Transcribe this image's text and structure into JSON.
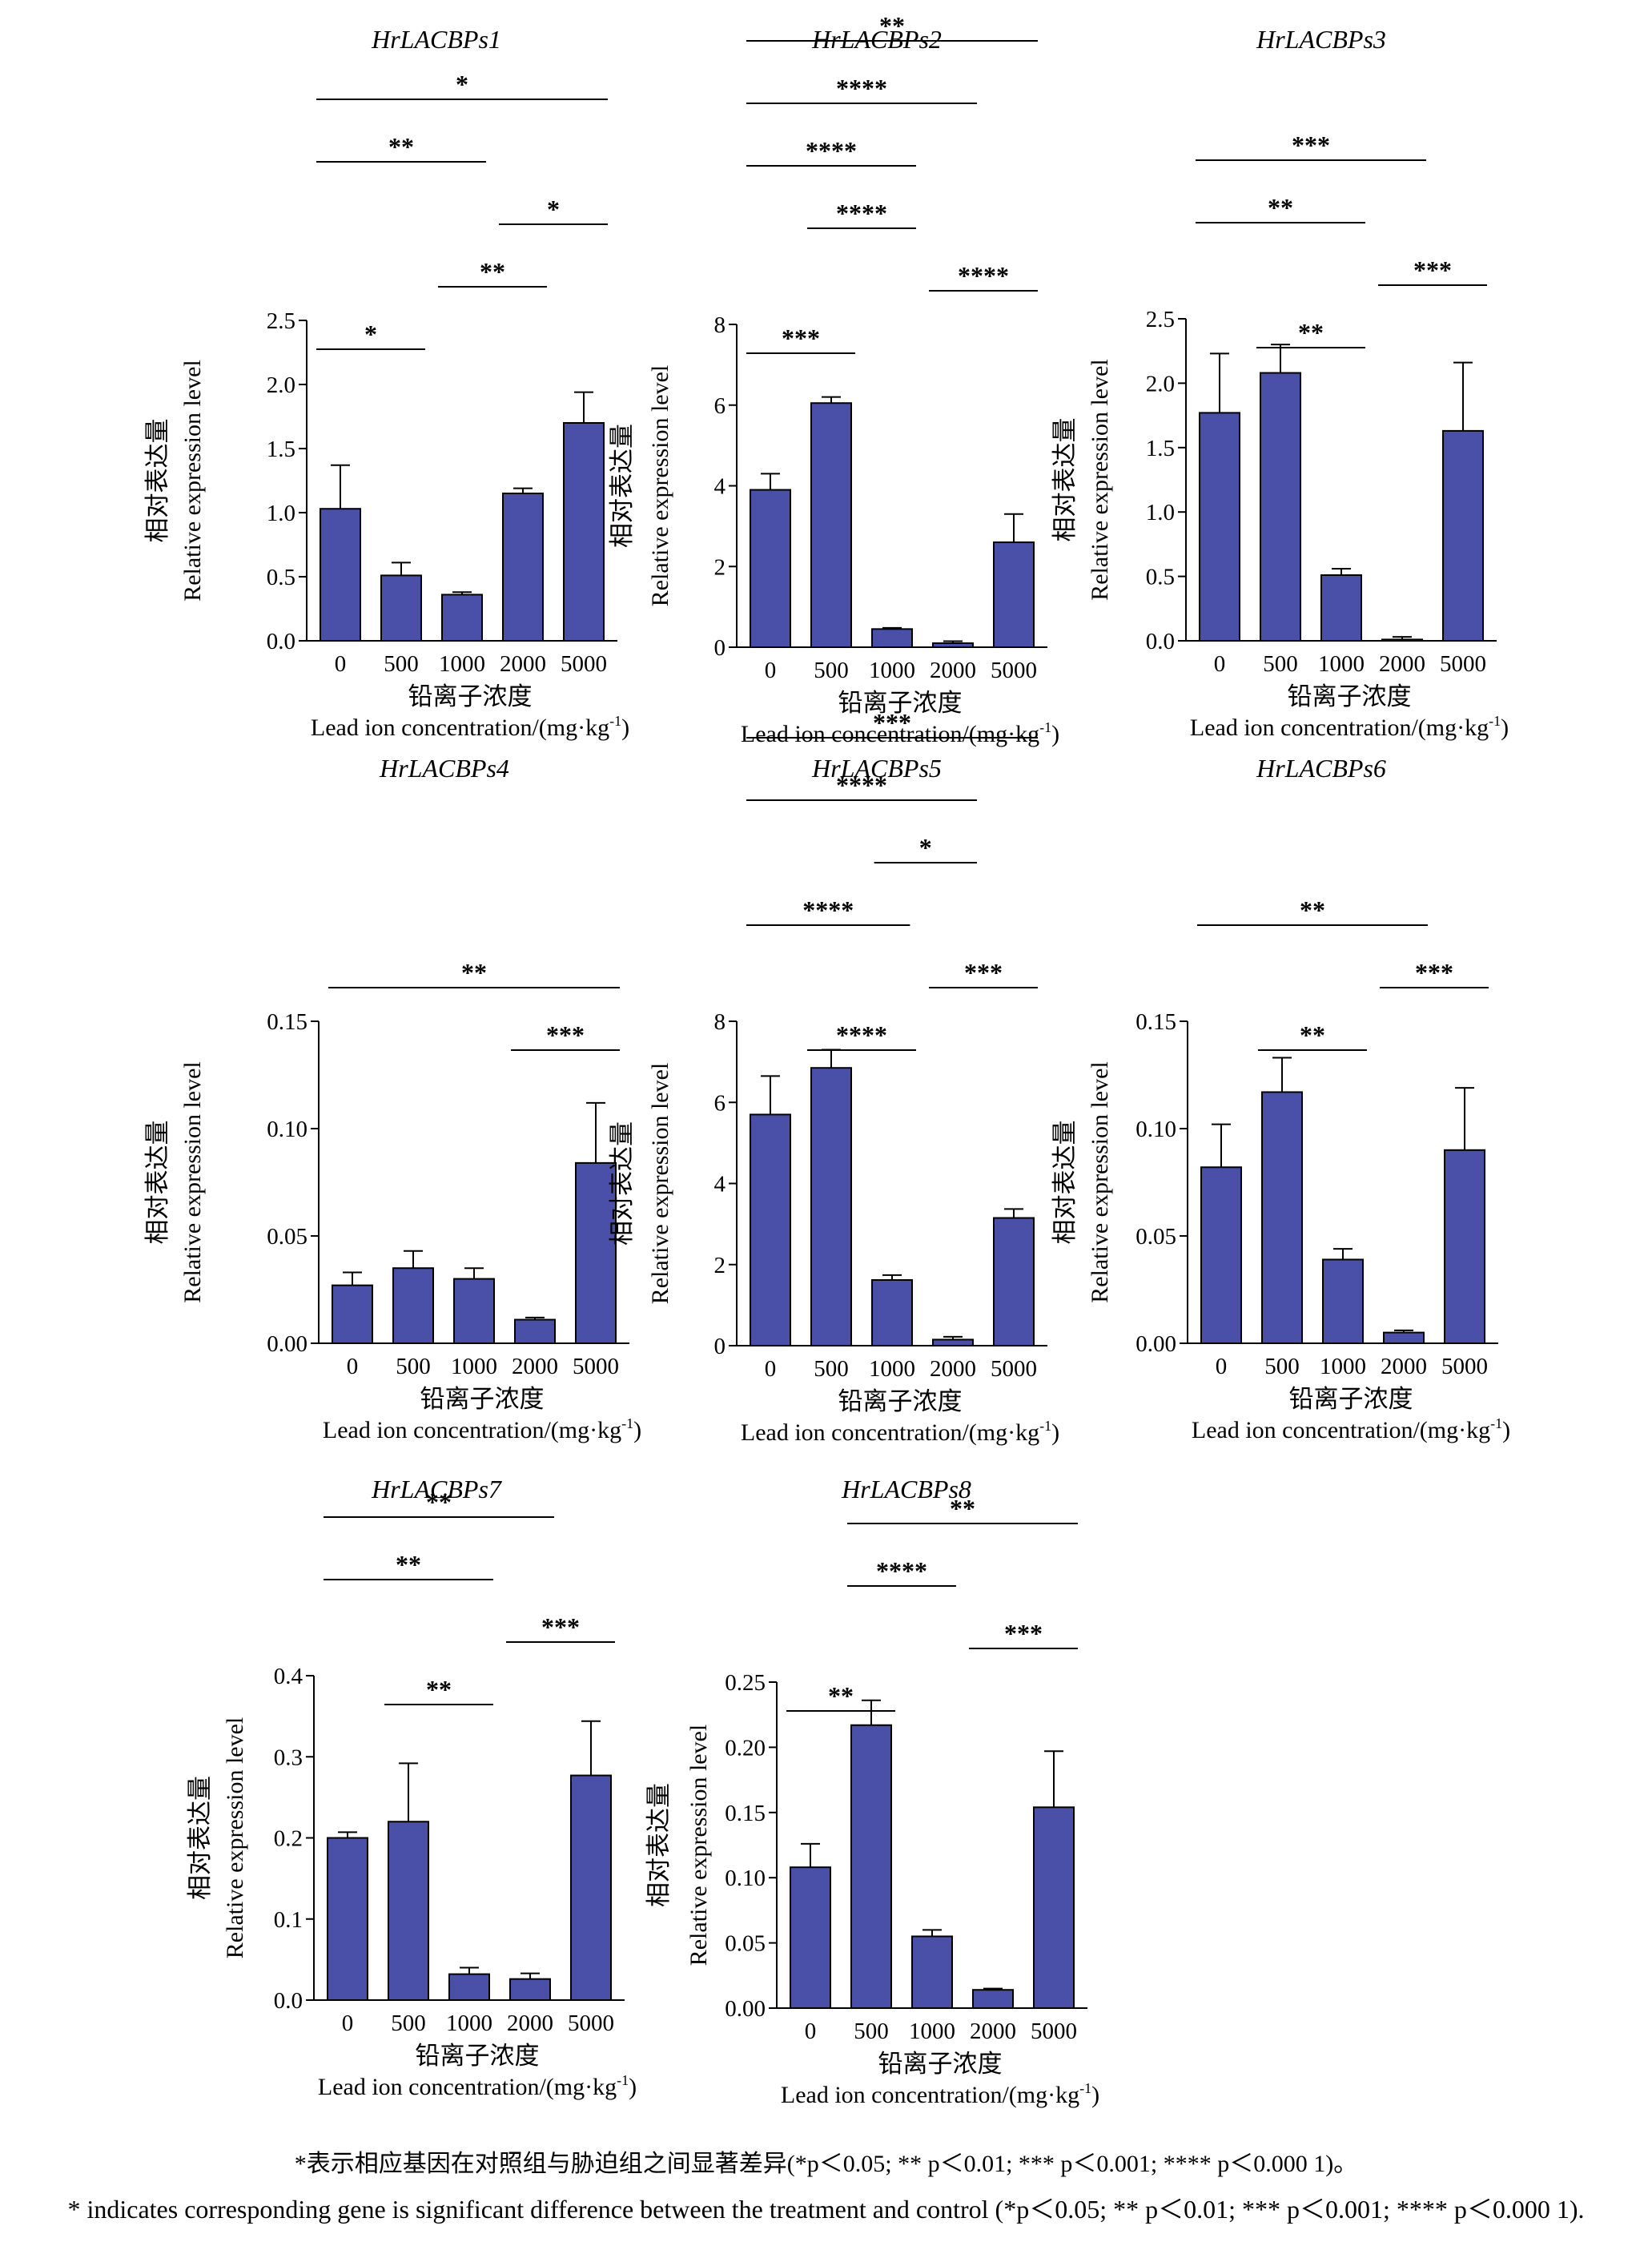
{
  "colors": {
    "bar": "#4a50a8",
    "axis": "#000000",
    "background": "#ffffff"
  },
  "charts": [
    {
      "type": "bar",
      "title": "HrLACBPs1",
      "categories": [
        "0",
        "500",
        "1000",
        "2000",
        "5000"
      ],
      "values": [
        1.03,
        0.51,
        0.36,
        1.15,
        1.7
      ],
      "errors": [
        0.34,
        0.1,
        0.02,
        0.04,
        0.24
      ],
      "ylim": [
        0,
        2.5
      ],
      "yticks": [
        "0.0",
        "0.5",
        "1.0",
        "1.5",
        "2.0",
        "2.5"
      ],
      "ylabel_cn": "相对表达量",
      "ylabel_en": "Relative expression level",
      "xlabel_cn": "铅离子浓度",
      "xlabel_en": "Lead ion concentration/(mg·kg",
      "xlabel_sup": "-1",
      "xlabel_end": ")",
      "significance": [
        {
          "from": 0,
          "to": 1,
          "label": "*"
        },
        {
          "from": 2,
          "to": 3,
          "label": "**"
        },
        {
          "from": 3,
          "to": 4,
          "label": "*"
        },
        {
          "from": 0,
          "to": 2,
          "label": "**"
        },
        {
          "from": 0,
          "to": 4,
          "label": "*"
        }
      ]
    },
    {
      "type": "bar",
      "title": "HrLACBPs2",
      "categories": [
        "0",
        "500",
        "1000",
        "2000",
        "5000"
      ],
      "values": [
        3.9,
        6.05,
        0.45,
        0.1,
        2.6
      ],
      "errors": [
        0.4,
        0.15,
        0.03,
        0.05,
        0.7
      ],
      "ylim": [
        0,
        8
      ],
      "yticks": [
        "0",
        "2",
        "4",
        "6",
        "8"
      ],
      "ylabel_cn": "相对表达量",
      "ylabel_en": "Relative expression level",
      "xlabel_cn": "铅离子浓度",
      "xlabel_en": "Lead ion concentration/(mg·kg",
      "xlabel_sup": "-1",
      "xlabel_end": ")",
      "significance": [
        {
          "from": 0,
          "to": 1,
          "label": "***"
        },
        {
          "from": 3,
          "to": 4,
          "label": "****"
        },
        {
          "from": 1,
          "to": 2,
          "label": "****"
        },
        {
          "from": 0,
          "to": 2,
          "label": "****"
        },
        {
          "from": 0,
          "to": 3,
          "label": "****"
        },
        {
          "from": 0,
          "to": 4,
          "label": "**"
        }
      ]
    },
    {
      "type": "bar",
      "title": "HrLACBPs3",
      "categories": [
        "0",
        "500",
        "1000",
        "2000",
        "5000"
      ],
      "values": [
        1.77,
        2.08,
        0.51,
        0.01,
        1.63
      ],
      "errors": [
        0.46,
        0.22,
        0.05,
        0.02,
        0.53
      ],
      "ylim": [
        0,
        2.5
      ],
      "yticks": [
        "0.0",
        "0.5",
        "1.0",
        "1.5",
        "2.0",
        "2.5"
      ],
      "ylabel_cn": "相对表达量",
      "ylabel_en": "Relative expression level",
      "xlabel_cn": "铅离子浓度",
      "xlabel_en": "Lead ion concentration/(mg·kg",
      "xlabel_sup": "-1",
      "xlabel_end": ")",
      "significance": [
        {
          "from": 1,
          "to": 2,
          "label": "**"
        },
        {
          "from": 3,
          "to": 4,
          "label": "***"
        },
        {
          "from": 0,
          "to": 2,
          "label": "**"
        },
        {
          "from": 0,
          "to": 3,
          "label": "***"
        }
      ]
    },
    {
      "type": "bar",
      "title": "HrLACBPs4",
      "categories": [
        "0",
        "500",
        "1000",
        "2000",
        "5000"
      ],
      "values": [
        0.027,
        0.035,
        0.03,
        0.011,
        0.084
      ],
      "errors": [
        0.006,
        0.008,
        0.005,
        0.001,
        0.028
      ],
      "ylim": [
        0,
        0.15
      ],
      "yticks": [
        "0.00",
        "0.05",
        "0.10",
        "0.15"
      ],
      "ylabel_cn": "相对表达量",
      "ylabel_en": "Relative expression level",
      "xlabel_cn": "铅离子浓度",
      "xlabel_en": "Lead ion concentration/(mg·kg",
      "xlabel_sup": "-1",
      "xlabel_end": ")",
      "significance": [
        {
          "from": 3,
          "to": 4,
          "label": "***"
        },
        {
          "from": 0,
          "to": 4,
          "label": "**"
        }
      ]
    },
    {
      "type": "bar",
      "title": "HrLACBPs5",
      "categories": [
        "0",
        "500",
        "1000",
        "2000",
        "5000"
      ],
      "values": [
        5.7,
        6.85,
        1.62,
        0.15,
        3.15
      ],
      "errors": [
        0.95,
        0.45,
        0.12,
        0.07,
        0.22
      ],
      "ylim": [
        0,
        8
      ],
      "yticks": [
        "0",
        "2",
        "4",
        "6",
        "8"
      ],
      "ylabel_cn": "相对表达量",
      "ylabel_en": "Relative expression level",
      "xlabel_cn": "铅离子浓度",
      "xlabel_en": "Lead ion concentration/(mg·kg",
      "xlabel_sup": "-1",
      "xlabel_end": ")",
      "significance": [
        {
          "from": 1,
          "to": 2,
          "label": "****"
        },
        {
          "from": 3,
          "to": 4,
          "label": "***"
        },
        {
          "from": 0,
          "to": 1.9,
          "label": "****"
        },
        {
          "from": 2.1,
          "to": 3,
          "label": "*"
        },
        {
          "from": 0,
          "to": 3,
          "label": "****"
        },
        {
          "from": 0,
          "to": 4,
          "label": "***"
        }
      ]
    },
    {
      "type": "bar",
      "title": "HrLACBPs6",
      "categories": [
        "0",
        "500",
        "1000",
        "2000",
        "5000"
      ],
      "values": [
        0.082,
        0.117,
        0.039,
        0.005,
        0.09
      ],
      "errors": [
        0.02,
        0.016,
        0.005,
        0.001,
        0.029
      ],
      "ylim": [
        0,
        0.15
      ],
      "yticks": [
        "0.00",
        "0.05",
        "0.10",
        "0.15"
      ],
      "ylabel_cn": "相对表达量",
      "ylabel_en": "Relative expression level",
      "xlabel_cn": "铅离子浓度",
      "xlabel_en": "Lead ion concentration/(mg·kg",
      "xlabel_sup": "-1",
      "xlabel_end": ")",
      "significance": [
        {
          "from": 1,
          "to": 2,
          "label": "**"
        },
        {
          "from": 3,
          "to": 4,
          "label": "***"
        },
        {
          "from": 0,
          "to": 3,
          "label": "**"
        }
      ]
    },
    {
      "type": "bar",
      "title": "HrLACBPs7",
      "categories": [
        "0",
        "500",
        "1000",
        "2000",
        "5000"
      ],
      "values": [
        0.2,
        0.22,
        0.032,
        0.026,
        0.277
      ],
      "errors": [
        0.007,
        0.072,
        0.008,
        0.007,
        0.067
      ],
      "ylim": [
        0,
        0.4
      ],
      "yticks": [
        "0.0",
        "0.1",
        "0.2",
        "0.3",
        "0.4"
      ],
      "ylabel_cn": "相对表达量",
      "ylabel_en": "Relative expression level",
      "xlabel_cn": "铅离子浓度",
      "xlabel_en": "Lead ion concentration/(mg·kg",
      "xlabel_sup": "-1",
      "xlabel_end": ")",
      "significance": [
        {
          "from": 1,
          "to": 2,
          "label": "**"
        },
        {
          "from": 3,
          "to": 4,
          "label": "***"
        },
        {
          "from": 0,
          "to": 2,
          "label": "**"
        },
        {
          "from": 0,
          "to": 3,
          "label": "**"
        }
      ]
    },
    {
      "type": "bar",
      "title": "HrLACBPs8",
      "categories": [
        "0",
        "500",
        "1000",
        "2000",
        "5000"
      ],
      "values": [
        0.108,
        0.217,
        0.055,
        0.014,
        0.154
      ],
      "errors": [
        0.018,
        0.019,
        0.005,
        0.001,
        0.043
      ],
      "ylim": [
        0,
        0.25
      ],
      "yticks": [
        "0.00",
        "0.05",
        "0.10",
        "0.15",
        "0.20",
        "0.25"
      ],
      "ylabel_cn": "相对表达量",
      "ylabel_en": "Relative expression level",
      "xlabel_cn": "铅离子浓度",
      "xlabel_en": "Lead ion concentration/(mg·kg",
      "xlabel_sup": "-1",
      "xlabel_end": ")",
      "significance": [
        {
          "from": 0,
          "to": 1,
          "label": "**"
        },
        {
          "from": 3,
          "to": 4,
          "label": "***"
        },
        {
          "from": 1,
          "to": 2,
          "label": "****"
        },
        {
          "from": 1,
          "to": 4,
          "label": "**"
        }
      ]
    }
  ],
  "footnote_cn": "*表示相应基因在对照组与胁迫组之间显著差异(*p＜0.05; ** p＜0.01; *** p＜0.001; **** p＜0.000 1)。",
  "footnote_en": "* indicates corresponding gene is significant difference between the treatment and control (*p＜0.05; ** p＜0.01; *** p＜0.001; **** p＜0.000 1)."
}
